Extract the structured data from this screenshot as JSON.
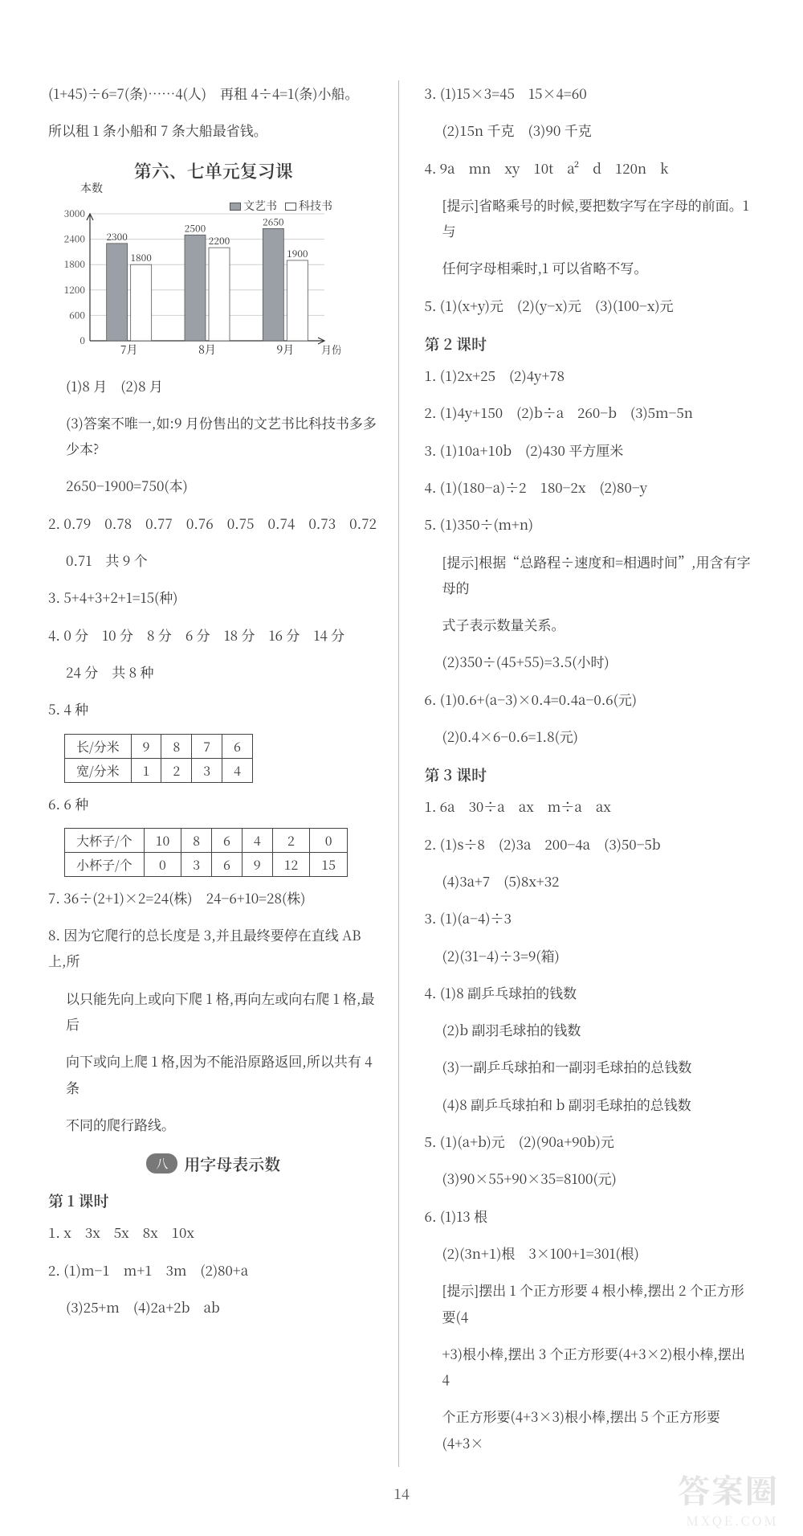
{
  "left": {
    "intro1": "(1+45)÷6=7(条)……4(人)　再租 4÷4=1(条)小船。",
    "intro2": "所以租 1 条小船和 7 条大船最省钱。",
    "review_title": "第六、七单元复习课",
    "chart": {
      "type": "bar",
      "y_title": "本数",
      "legend1": "文艺书",
      "legend2": "科技书",
      "categories": [
        "7月",
        "8月",
        "9月"
      ],
      "x_axis_label": "月份",
      "series1": [
        2300,
        2500,
        2650
      ],
      "series2": [
        1800,
        2200,
        1900
      ],
      "ylim": [
        0,
        3000
      ],
      "ytick_step": 600,
      "bar1_color": "#9aa0a6",
      "bar2_color": "#ffffff",
      "grid_color": "#d0d0d0"
    },
    "q1_1": "(1)8 月　(2)8 月",
    "q1_3a": "(3)答案不唯一,如:9 月份售出的文艺书比科技书多多少本?",
    "q1_3b": "2650−1900=750(本)",
    "q2a": "2. 0.79　0.78　0.77　0.76　0.75　0.74　0.73　0.72",
    "q2b": "0.71　共 9 个",
    "q3": "3. 5+4+3+2+1=15(种)",
    "q4a": "4. 0 分　10 分　8 分　6 分　18 分　16 分　14 分",
    "q4b": "24 分　共 8 种",
    "q5": "5. 4 种",
    "table1": {
      "row1": [
        "长/分米",
        "9",
        "8",
        "7",
        "6"
      ],
      "row2": [
        "宽/分米",
        "1",
        "2",
        "3",
        "4"
      ]
    },
    "q6": "6. 6 种",
    "table2": {
      "row1": [
        "大杯子/个",
        "10",
        "8",
        "6",
        "4",
        "2",
        "0"
      ],
      "row2": [
        "小杯子/个",
        "0",
        "3",
        "6",
        "9",
        "12",
        "15"
      ]
    },
    "q7": "7. 36÷(2+1)×2=24(株)　24−6+10=28(株)",
    "q8a": "8. 因为它爬行的总长度是 3,并且最终要停在直线 AB 上,所",
    "q8b": "以只能先向上或向下爬 1 格,再向左或向右爬 1 格,最后",
    "q8c": "向下或向上爬 1 格,因为不能沿原路返回,所以共有 4 条",
    "q8d": "不同的爬行路线。",
    "sec8_pill": "八",
    "sec8_title": "用字母表示数",
    "lesson1": "第 1 课时",
    "l1_1": "1. x　3x　5x　8x　10x",
    "l1_2": "2. (1)m−1　m+1　3m　(2)80+a",
    "l1_3": "(3)25+m　(4)2a+2b　ab"
  },
  "right": {
    "r3_1": "3. (1)15×3=45　15×4=60",
    "r3_2": "(2)15n 千克　(3)90 千克",
    "r4a": "4. 9a　mn　xy　10t　a²　d　120n　k",
    "r4b": "[提示]省略乘号的时候,要把数字写在字母的前面。1 与",
    "r4c": "任何字母相乘时,1 可以省略不写。",
    "r5": "5. (1)(x+y)元　(2)(y−x)元　(3)(100−x)元",
    "lesson2": "第 2 课时",
    "r2_1": "1. (1)2x+25　(2)4y+78",
    "r2_2": "2. (1)4y+150　(2)b÷a　260−b　(3)5m−5n",
    "r2_3": "3. (1)10a+10b　(2)430 平方厘米",
    "r2_4": "4. (1)(180−a)÷2　180−2x　(2)80−y",
    "r2_5a": "5. (1)350÷(m+n)",
    "r2_5b": "[提示]根据“总路程÷速度和=相遇时间”,用含有字母的",
    "r2_5c": "式子表示数量关系。",
    "r2_5d": "(2)350÷(45+55)=3.5(小时)",
    "r2_6a": "6. (1)0.6+(a−3)×0.4=0.4a−0.6(元)",
    "r2_6b": "(2)0.4×6−0.6=1.8(元)",
    "lesson3": "第 3 课时",
    "r3l_1": "1. 6a　30÷a　ax　m÷a　ax",
    "r3l_2a": "2. (1)s÷8　(2)3a　200−4a　(3)50−5b",
    "r3l_2b": "(4)3a+7　(5)8x+32",
    "r3l_3a": "3. (1)(a−4)÷3",
    "r3l_3b": "(2)(31−4)÷3=9(箱)",
    "r3l_4a": "4. (1)8 副乒乓球拍的钱数",
    "r3l_4b": "(2)b 副羽毛球拍的钱数",
    "r3l_4c": "(3)一副乒乓球拍和一副羽毛球拍的总钱数",
    "r3l_4d": "(4)8 副乒乓球拍和 b 副羽毛球拍的总钱数",
    "r3l_5a": "5. (1)(a+b)元　(2)(90a+90b)元",
    "r3l_5b": "(3)90×55+90×35=8100(元)",
    "r3l_6a": "6. (1)13 根",
    "r3l_6b": "(2)(3n+1)根　3×100+1=301(根)",
    "r3l_6c": "[提示]摆出 1 个正方形要 4 根小棒,摆出 2 个正方形要(4",
    "r3l_6d": "+3)根小棒,摆出 3 个正方形要(4+3×2)根小棒,摆出 4",
    "r3l_6e": "个正方形要(4+3×3)根小棒,摆出 5 个正方形要(4+3×"
  },
  "page_number": "14",
  "watermark": "答案圈",
  "watermark_sub": "MXQE.COM"
}
